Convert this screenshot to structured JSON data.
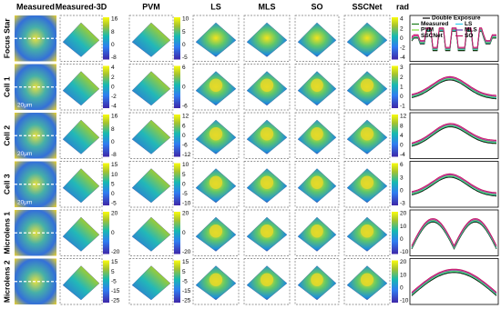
{
  "columns": [
    "Measured",
    "Measured-3D",
    "PVM",
    "LS",
    "MLS",
    "SO",
    "SSCNet",
    "rad"
  ],
  "rows": [
    {
      "label": "Focus Star",
      "cb1": [
        "16",
        "8",
        "0",
        "-8"
      ],
      "cb2": [
        "10",
        "5",
        "0",
        "-5"
      ],
      "cb3": [
        "4",
        "2",
        "0",
        "-2",
        "-4"
      ]
    },
    {
      "label": "Cell 1",
      "scale": "20μm",
      "cb1": [
        "4",
        "2",
        "0",
        "-2",
        "-4"
      ],
      "cb2": [
        "6",
        "0",
        "-6"
      ],
      "cb3": [
        "3",
        "2",
        "1",
        "0",
        "-1"
      ]
    },
    {
      "label": "Cell 2",
      "scale": "20μm",
      "cb1": [
        "16",
        "8",
        "0",
        "-8"
      ],
      "cb2": [
        "12",
        "6",
        "0",
        "-6",
        "-12"
      ],
      "cb3": [
        "12",
        "8",
        "4",
        "0",
        "-4"
      ]
    },
    {
      "label": "Cell 3",
      "scale": "20μm",
      "cb1": [
        "15",
        "10",
        "5",
        "0",
        "-5"
      ],
      "cb2": [
        "10",
        "5",
        "0",
        "-5",
        "-10"
      ],
      "cb3": [
        "6",
        "3",
        "0",
        "-3"
      ]
    },
    {
      "label": "Microlens 1",
      "cb1": [
        "20",
        "0",
        "-20"
      ],
      "cb2": [
        "20",
        "0",
        "-20"
      ],
      "cb3": [
        "20",
        "10",
        "0",
        "-10"
      ]
    },
    {
      "label": "Microlens 2",
      "cb1": [
        "15",
        "5",
        "-5",
        "-15",
        "-25"
      ],
      "cb2": [
        "15",
        "5",
        "-5",
        "-15",
        "-25"
      ],
      "cb3": [
        "20",
        "10",
        "0",
        "-10"
      ]
    }
  ],
  "legend": [
    {
      "name": "Double Exposure",
      "color": "#000000"
    },
    {
      "name": "Measured",
      "color": "#1a7a1a"
    },
    {
      "name": "LS",
      "color": "#33ccee"
    },
    {
      "name": "PVM",
      "color": "#7ddc3a"
    },
    {
      "name": "MLS",
      "color": "#6a3aa8"
    },
    {
      "name": "SSCNet",
      "color": "#e0409a"
    },
    {
      "name": "SO",
      "color": "#c01060"
    }
  ]
}
